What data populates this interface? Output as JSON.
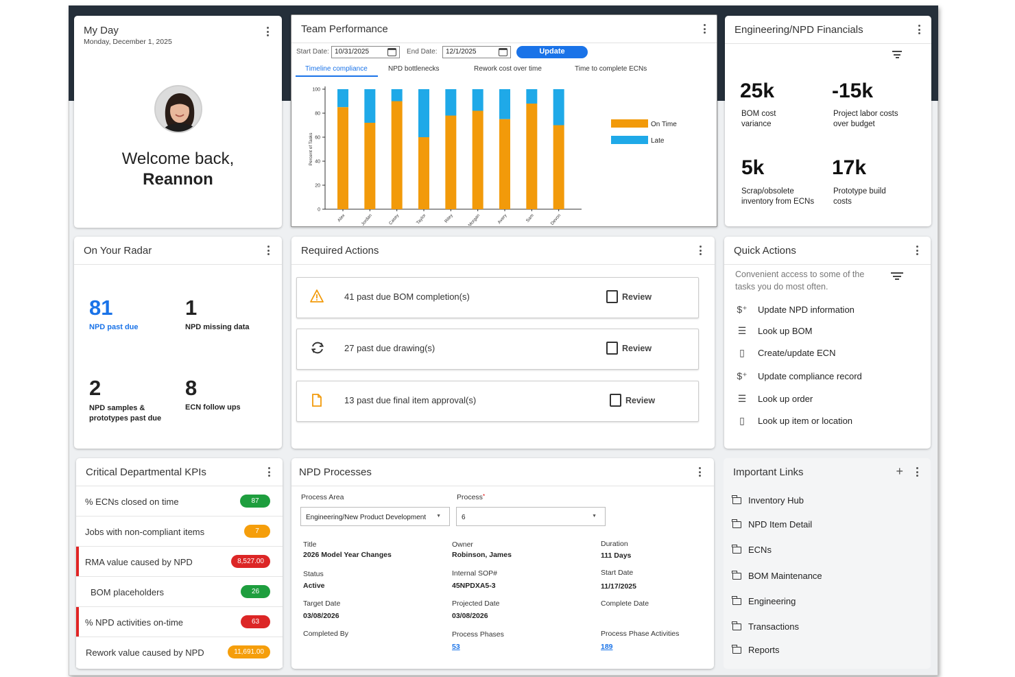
{
  "my_day": {
    "title": "My Day",
    "date": "Monday, December 1, 2025",
    "welcome": "Welcome back,",
    "name": "Reannon"
  },
  "team_performance": {
    "title": "Team Performance",
    "start_label": "Start Date:",
    "start_value": "10/31/2025",
    "end_label": "End Date:",
    "end_value": "12/1/2025",
    "update_label": "Update",
    "tabs": [
      "Timeline compliance",
      "NPD bottlenecks",
      "Rework cost over time",
      "Time to complete ECNs"
    ]
  },
  "chart_data": {
    "type": "bar",
    "stacked": true,
    "categories": [
      "Alex",
      "Jordan",
      "Casey",
      "Taylor",
      "Riley",
      "Morgan",
      "Avery",
      "Sam",
      "Devon"
    ],
    "series": [
      {
        "name": "On Time",
        "values": [
          85,
          72,
          90,
          60,
          78,
          82,
          75,
          88,
          70
        ]
      },
      {
        "name": "Late",
        "values": [
          15,
          28,
          10,
          40,
          22,
          18,
          25,
          12,
          30
        ]
      }
    ],
    "ylabel": "Percent of Tasks",
    "xlabel": "",
    "ylim": [
      0,
      100
    ],
    "yticks": [
      0,
      20,
      40,
      60,
      80,
      100
    ],
    "legend_position": "right",
    "colors": {
      "On Time": "#f29a0a",
      "Late": "#1fa9e8"
    }
  },
  "financials": {
    "title": "Engineering/NPD Financials",
    "items": [
      {
        "value": "25k",
        "label1": "BOM cost",
        "label2": "variance"
      },
      {
        "value": "-15k",
        "label1": "Project labor costs",
        "label2": "over budget"
      },
      {
        "value": "5k",
        "label1": "Scrap/obsolete",
        "label2": "inventory from ECNs"
      },
      {
        "value": "17k",
        "label1": "Prototype build",
        "label2": "costs"
      }
    ]
  },
  "radar": {
    "title": "On Your Radar",
    "items": [
      {
        "value": "81",
        "label1": "NPD past due",
        "label2": ""
      },
      {
        "value": "1",
        "label1": "NPD missing data",
        "label2": ""
      },
      {
        "value": "2",
        "label1": "NPD samples &",
        "label2": "prototypes past due"
      },
      {
        "value": "8",
        "label1": "ECN follow ups",
        "label2": ""
      }
    ],
    "accent": "#1a73e8"
  },
  "required_actions": {
    "title": "Required Actions",
    "items": [
      {
        "text": "41 past due BOM completion(s)",
        "icon": "warning-icon",
        "action": "Review"
      },
      {
        "text": "27 past due drawing(s)",
        "icon": "sync-icon",
        "action": "Review"
      },
      {
        "text": "13 past due final item approval(s)",
        "icon": "document-icon",
        "action": "Review"
      }
    ]
  },
  "quick_actions": {
    "title": "Quick Actions",
    "desc1": "Convenient access to some of the",
    "desc2": "tasks you do most often.",
    "items": [
      {
        "label": "Update NPD information",
        "icon": "dollar-plus-icon"
      },
      {
        "label": "Look up BOM",
        "icon": "list-icon"
      },
      {
        "label": "Create/update ECN",
        "icon": "clipboard-icon"
      },
      {
        "label": "Update compliance record",
        "icon": "dollar-plus-icon"
      },
      {
        "label": "Look up order",
        "icon": "list-icon"
      },
      {
        "label": "Look up item or location",
        "icon": "clipboard-icon"
      }
    ]
  },
  "kpis": {
    "title": "Critical Departmental KPIs",
    "rows": [
      {
        "label": "% ECNs closed on time",
        "value": "87",
        "color": "#1e9e3e",
        "flag": false
      },
      {
        "label": "Jobs with non-compliant items",
        "value": "7",
        "color": "#f59e0b",
        "flag": false
      },
      {
        "label": "RMA value caused by NPD",
        "value": "8,527.00",
        "color": "#dc2626",
        "flag": true
      },
      {
        "label": "BOM placeholders",
        "value": "26",
        "color": "#1e9e3e",
        "flag": false
      },
      {
        "label": "% NPD activities on-time",
        "value": "63",
        "color": "#dc2626",
        "flag": true
      },
      {
        "label": "Rework value caused by NPD",
        "value": "11,691.00",
        "color": "#f59e0b",
        "flag": false
      }
    ]
  },
  "npd": {
    "title": "NPD Processes",
    "area_label": "Process Area",
    "area_value": "Engineering/New Product Development",
    "process_label": "Process",
    "required_mark": "*",
    "process_value": "6",
    "fields": {
      "title_l": "Title",
      "title_v": "2026 Model Year Changes",
      "owner_l": "Owner",
      "owner_v": "Robinson, James",
      "duration_l": "Duration",
      "duration_v": "111 Days",
      "status_l": "Status",
      "status_v": "Active",
      "sop_l": "Internal SOP#",
      "sop_v": "45NPDXA5-3",
      "start_l": "Start Date",
      "start_v": "11/17/2025",
      "target_l": "Target Date",
      "target_v": "03/08/2026",
      "proj_l": "Projected Date",
      "proj_v": "03/08/2026",
      "complete_l": "Complete Date",
      "completed_by_l": "Completed By",
      "phases_l": "Process Phases",
      "phases_v": "53",
      "activities_l": "Process Phase Activities",
      "activities_v": "189"
    }
  },
  "links": {
    "title": "Important Links",
    "add": "+",
    "items": [
      "Inventory Hub",
      "NPD Item Detail",
      "ECNs",
      "BOM Maintenance",
      "Engineering",
      "Transactions",
      "Reports"
    ]
  }
}
